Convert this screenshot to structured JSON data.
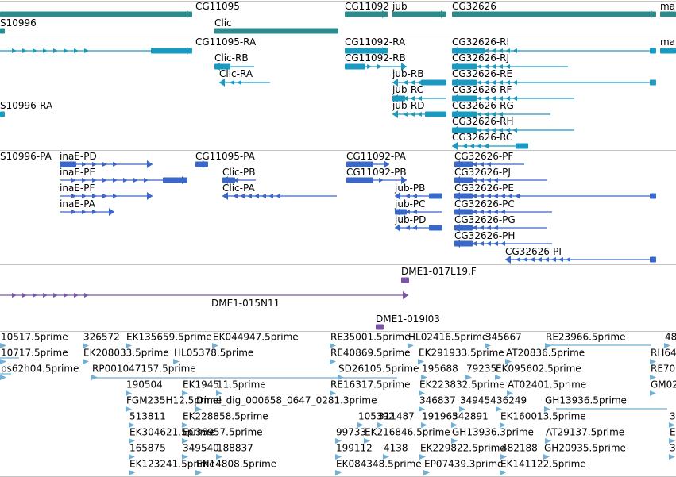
{
  "tracks": {
    "genes": {
      "color": "#2e8b8b",
      "features": [
        {
          "label": "CG11095"
        },
        {
          "label": "CG11092"
        },
        {
          "label": "jub"
        },
        {
          "label": "CG32626"
        },
        {
          "label": "ma"
        },
        {
          "label": "S10996"
        },
        {
          "label": "Clic"
        }
      ]
    },
    "transcripts_ra": {
      "color": "#1a9ac0",
      "features": [
        {
          "label": "CG11095-RA"
        },
        {
          "label": "CG11092-RA"
        },
        {
          "label": "CG32626-RI"
        },
        {
          "label": "ma"
        },
        {
          "label": "Clic-RB"
        },
        {
          "label": "CG11092-RB"
        },
        {
          "label": "CG32626-RJ"
        },
        {
          "label": "Clic-RA"
        },
        {
          "label": "jub-RB"
        },
        {
          "label": "CG32626-RE"
        },
        {
          "label": "jub-RC"
        },
        {
          "label": "CG32626-RF"
        },
        {
          "label": "S10996-RA"
        },
        {
          "label": "jub-RD"
        },
        {
          "label": "CG32626-RG"
        },
        {
          "label": "CG32626-RH"
        },
        {
          "label": "CG32626-RC"
        }
      ]
    },
    "proteins": {
      "color": "#3a68c8",
      "features": [
        {
          "label": "S10996-PA"
        },
        {
          "label": "inaE-PD"
        },
        {
          "label": "CG11095-PA"
        },
        {
          "label": "CG11092-PA"
        },
        {
          "label": "CG32626-PF"
        },
        {
          "label": "inaE-PE"
        },
        {
          "label": "Clic-PB"
        },
        {
          "label": "CG11092-PB"
        },
        {
          "label": "CG32626-PJ"
        },
        {
          "label": "inaE-PF"
        },
        {
          "label": "Clic-PA"
        },
        {
          "label": "jub-PB"
        },
        {
          "label": "CG32626-PE"
        },
        {
          "label": "inaE-PA"
        },
        {
          "label": "jub-PC"
        },
        {
          "label": "CG32626-PC"
        },
        {
          "label": "jub-PD"
        },
        {
          "label": "CG32626-PG"
        },
        {
          "label": "CG32626-PH"
        },
        {
          "label": "CG32626-PI"
        }
      ]
    },
    "clones": {
      "color": "#7a55a8",
      "features": [
        {
          "label": "DME1-017L19.F"
        },
        {
          "label": "DME1-015N11"
        },
        {
          "label": "DME1-019I03"
        }
      ]
    },
    "ests": {
      "color": "#6fb0d8",
      "features": [
        {
          "label": "10517.5prime"
        },
        {
          "label": "326572"
        },
        {
          "label": "EK135659.5prime"
        },
        {
          "label": "EK044947.5prime"
        },
        {
          "label": "RE35001.5prime"
        },
        {
          "label": "HL02416.5prime"
        },
        {
          "label": "345667"
        },
        {
          "label": "RE23966.5prime"
        },
        {
          "label": "48"
        },
        {
          "label": "10717.5prime"
        },
        {
          "label": "EK208033.5prime"
        },
        {
          "label": "HL05378.5prime"
        },
        {
          "label": "RE40869.5prime"
        },
        {
          "label": "EK291933.5prime"
        },
        {
          "label": "AT20836.5prime"
        },
        {
          "label": "RH64"
        },
        {
          "label": "ps62h04.5prime"
        },
        {
          "label": "RP001047157.5prime"
        },
        {
          "label": "SD26105.5prime"
        },
        {
          "label": "195688"
        },
        {
          "label": "79235"
        },
        {
          "label": "EK095602.5prime"
        },
        {
          "label": "RE705"
        },
        {
          "label": "190504"
        },
        {
          "label": "EK1945"
        },
        {
          "label": "11.5prime"
        },
        {
          "label": "RE16317.5prime"
        },
        {
          "label": "EK223832.5prime"
        },
        {
          "label": "AT02401.5prime"
        },
        {
          "label": "GM02"
        },
        {
          "label": "FGM235H12.5prime"
        },
        {
          "label": "Dmel_dig_000658_0647_0281.3prime"
        },
        {
          "label": "346837"
        },
        {
          "label": "349454"
        },
        {
          "label": "36249"
        },
        {
          "label": "GH13936.5prime"
        },
        {
          "label": "513811"
        },
        {
          "label": "EK228858.5prime"
        },
        {
          "label": "105392"
        },
        {
          "label": "311487"
        },
        {
          "label": "191963"
        },
        {
          "label": "542891"
        },
        {
          "label": "EK160013.5prime"
        },
        {
          "label": "3"
        },
        {
          "label": "EK304621.5prime"
        },
        {
          "label": "EC36957.5prime"
        },
        {
          "label": "99733"
        },
        {
          "label": "EK216846.5prime"
        },
        {
          "label": "GH13936.3prime"
        },
        {
          "label": "AT29137.5prime"
        },
        {
          "label": "E"
        },
        {
          "label": "165875"
        },
        {
          "label": "349540"
        },
        {
          "label": "188837"
        },
        {
          "label": "199112"
        },
        {
          "label": "4138"
        },
        {
          "label": "EK229822.5prime"
        },
        {
          "label": "482188"
        },
        {
          "label": "GH20935.5prime"
        },
        {
          "label": "3"
        },
        {
          "label": "EK123241.5prime"
        },
        {
          "label": "EN14808.5prime"
        },
        {
          "label": "EK084348.5prime"
        },
        {
          "label": "EP07439.3prime"
        },
        {
          "label": "EK141122.5prime"
        }
      ]
    }
  }
}
